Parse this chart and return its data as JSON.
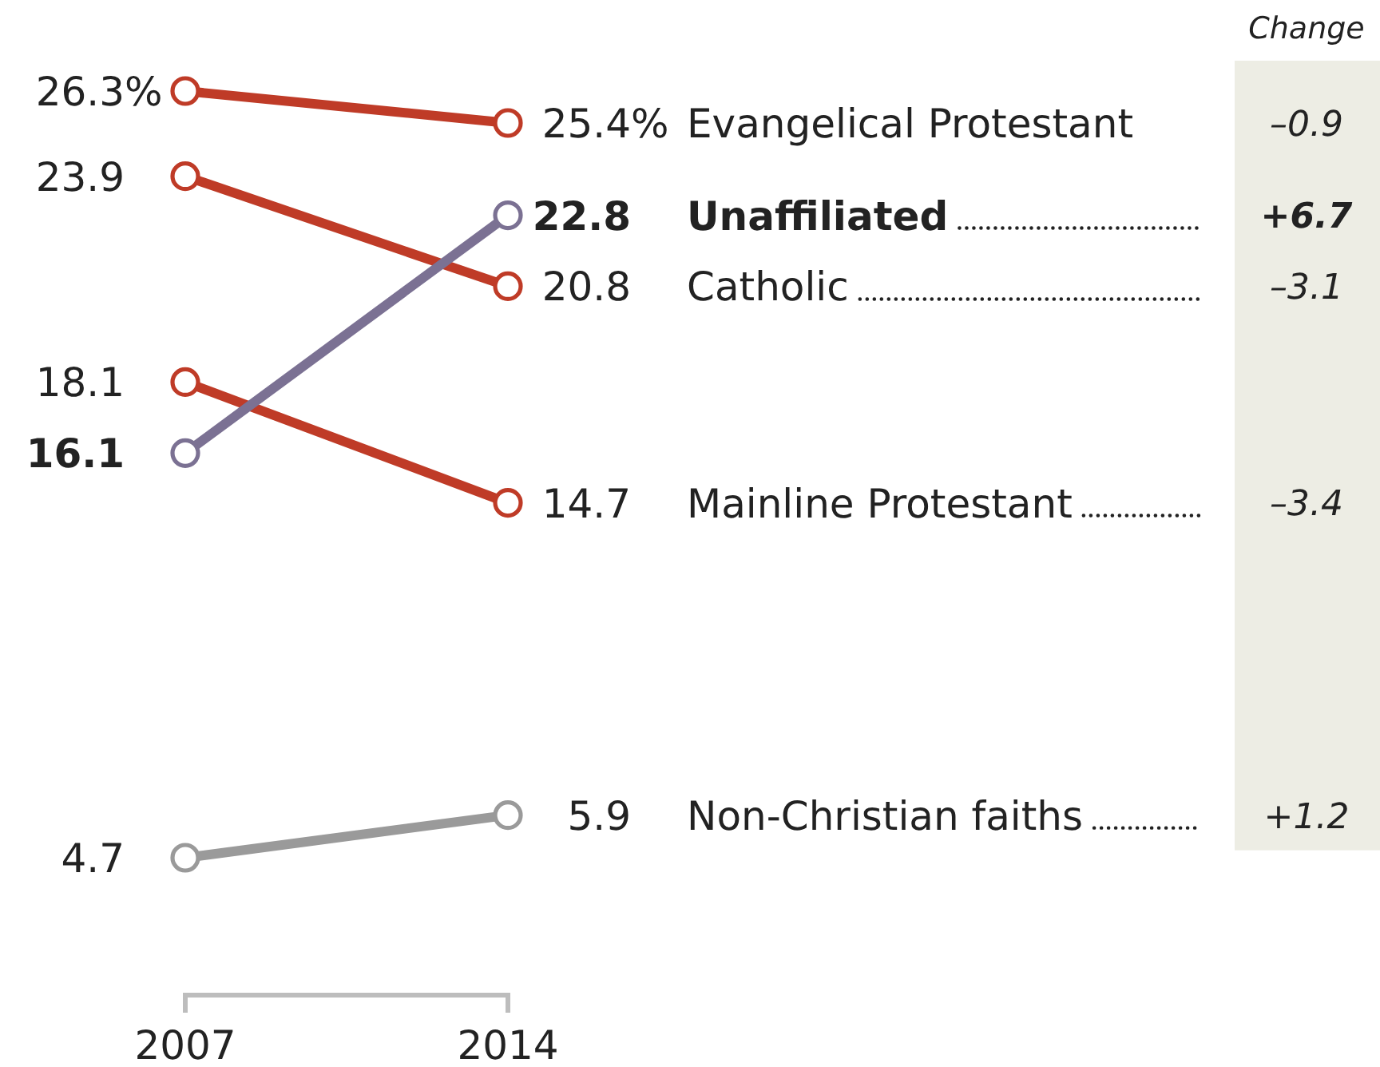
{
  "chart_data": {
    "type": "line",
    "categories": [
      "2007",
      "2014"
    ],
    "series": [
      {
        "name": "Evangelical Protestant",
        "color": "#bf3b27",
        "values": [
          26.3,
          25.4
        ],
        "value_labels": [
          "26.3%",
          "25.4%"
        ]
      },
      {
        "name": "Unaffiliated",
        "color": "#7b7193",
        "values": [
          16.1,
          22.8
        ],
        "value_labels": [
          "16.1",
          "22.8"
        ]
      },
      {
        "name": "Catholic",
        "color": "#bf3b27",
        "values": [
          23.9,
          20.8
        ],
        "value_labels": [
          "23.9",
          "20.8"
        ]
      },
      {
        "name": "Mainline Protestant",
        "color": "#bf3b27",
        "values": [
          18.1,
          14.7
        ],
        "value_labels": [
          "18.1",
          "14.7"
        ]
      },
      {
        "name": "Non-Christian faiths",
        "color": "#9a9a9a",
        "values": [
          4.7,
          5.9
        ],
        "value_labels": [
          "4.7",
          "5.9"
        ]
      }
    ],
    "tick_labels": "x",
    "marker": "circle",
    "line_style": "solid",
    "annotations": [
      "Change",
      "–0.9",
      "+6.7",
      "–3.1",
      "–3.4",
      "+1.2"
    ]
  }
}
